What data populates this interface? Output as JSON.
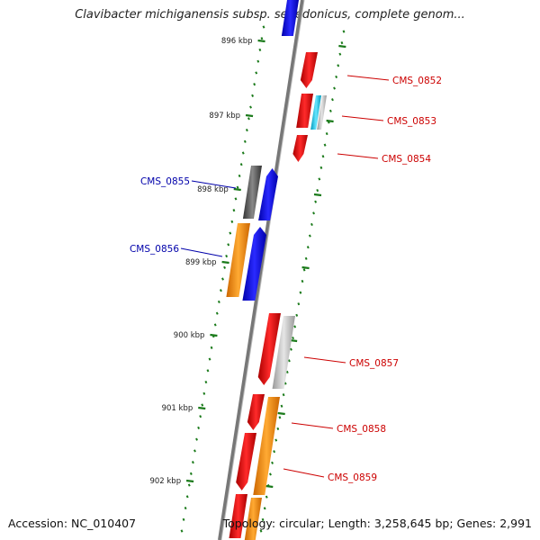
{
  "title": "Clavibacter michiganensis subsp. sepedonicus, complete genom...",
  "footer": {
    "accession": "Accession: NC_010407",
    "topology": "Topology: circular; Length: 3,258,645 bp; Genes: 2,991"
  },
  "ticks": [
    {
      "label": "896 kbp",
      "pos": 896
    },
    {
      "label": "897 kbp",
      "pos": 897
    },
    {
      "label": "898 kbp",
      "pos": 898
    },
    {
      "label": "899 kbp",
      "pos": 899
    },
    {
      "label": "900 kbp",
      "pos": 900
    },
    {
      "label": "901 kbp",
      "pos": 901
    },
    {
      "label": "902 kbp",
      "pos": 902
    }
  ],
  "gene_labels": [
    {
      "label": "CMS_0852",
      "color": "#cc0000"
    },
    {
      "label": "CMS_0853",
      "color": "#cc0000"
    },
    {
      "label": "CMS_0854",
      "color": "#cc0000"
    },
    {
      "label": "CMS_0855",
      "color": "#0000aa"
    },
    {
      "label": "CMS_0856",
      "color": "#0000aa"
    },
    {
      "label": "CMS_0857",
      "color": "#cc0000"
    },
    {
      "label": "CMS_0858",
      "color": "#cc0000"
    },
    {
      "label": "CMS_0859",
      "color": "#cc0000"
    }
  ],
  "colors": {
    "red": "#ee0000",
    "blue": "#0000ee",
    "orange": "#ff8800",
    "gray_dark": "#555555",
    "gray_light": "#bbbbbb",
    "cyan": "#22ccee",
    "backbone": "#777777",
    "tick": "#1a7a1a"
  }
}
